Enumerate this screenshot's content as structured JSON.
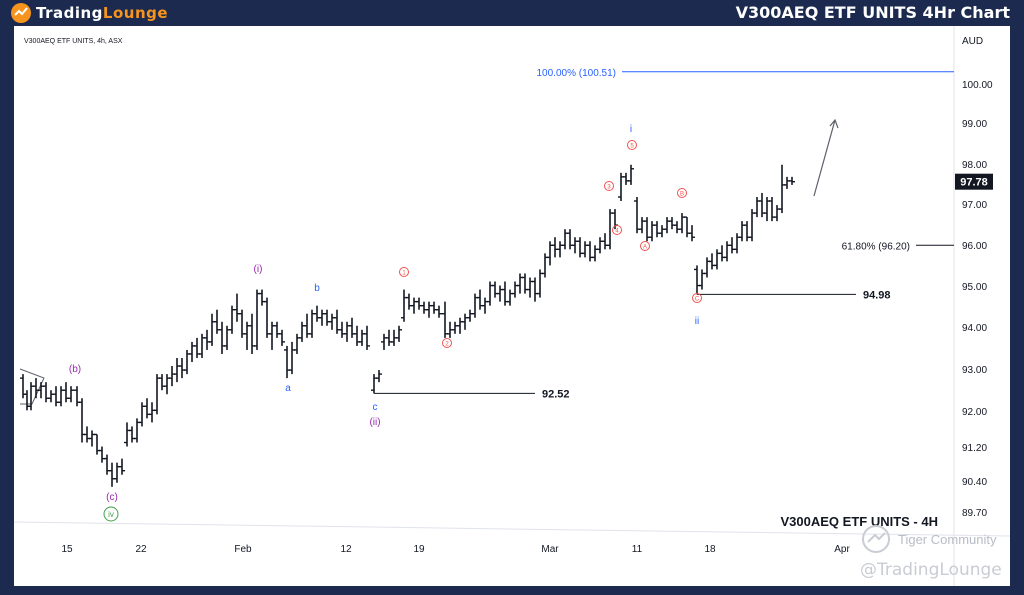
{
  "header": {
    "brand_part1": "Trading",
    "brand_part2": "Lounge",
    "title": "V300AEQ ETF UNITS 4Hr Chart"
  },
  "watermarks": {
    "community": "Tiger Community",
    "handle": "@TradingLounge"
  },
  "chart_data": {
    "type": "ohlc",
    "symbol_info": "V300AEQ ETF UNITS, 4h, ASX",
    "bottom_title": "V300AEQ ETF UNITS - 4H",
    "currency": "AUD",
    "last_price": "97.78",
    "y_ticks": [
      "100.00",
      "99.00",
      "98.00",
      "97.00",
      "96.00",
      "95.00",
      "94.00",
      "93.00",
      "92.00",
      "91.20",
      "90.40",
      "89.70"
    ],
    "x_ticks": [
      "15",
      "22",
      "Feb",
      "12",
      "19",
      "Mar",
      "11",
      "18",
      "Apr"
    ],
    "ylim": [
      89.4,
      101.3
    ],
    "bars": [
      {
        "x": 23,
        "o": 92.9,
        "h": 93.0,
        "l": 92.4,
        "c": 92.5
      },
      {
        "x": 27,
        "o": 92.5,
        "h": 92.6,
        "l": 92.1,
        "c": 92.2
      },
      {
        "x": 31,
        "o": 92.2,
        "h": 92.8,
        "l": 92.1,
        "c": 92.7
      },
      {
        "x": 36,
        "o": 92.7,
        "h": 92.9,
        "l": 92.4,
        "c": 92.6
      },
      {
        "x": 41,
        "o": 92.6,
        "h": 92.8,
        "l": 92.4,
        "c": 92.7
      },
      {
        "x": 46,
        "o": 92.7,
        "h": 92.8,
        "l": 92.3,
        "c": 92.4
      },
      {
        "x": 51,
        "o": 92.4,
        "h": 92.6,
        "l": 92.3,
        "c": 92.5
      },
      {
        "x": 56,
        "o": 92.5,
        "h": 92.7,
        "l": 92.2,
        "c": 92.3
      },
      {
        "x": 61,
        "o": 92.3,
        "h": 92.7,
        "l": 92.2,
        "c": 92.6
      },
      {
        "x": 66,
        "o": 92.6,
        "h": 92.8,
        "l": 92.3,
        "c": 92.4
      },
      {
        "x": 71,
        "o": 92.4,
        "h": 92.7,
        "l": 92.3,
        "c": 92.6
      },
      {
        "x": 77,
        "o": 92.6,
        "h": 92.7,
        "l": 92.2,
        "c": 92.3
      },
      {
        "x": 82,
        "o": 92.3,
        "h": 92.4,
        "l": 91.3,
        "c": 91.5
      },
      {
        "x": 87,
        "o": 91.5,
        "h": 91.7,
        "l": 91.3,
        "c": 91.4
      },
      {
        "x": 92,
        "o": 91.4,
        "h": 91.6,
        "l": 91.2,
        "c": 91.5
      },
      {
        "x": 97,
        "o": 91.5,
        "h": 91.5,
        "l": 91.0,
        "c": 91.1
      },
      {
        "x": 102,
        "o": 91.1,
        "h": 91.2,
        "l": 90.8,
        "c": 90.9
      },
      {
        "x": 107,
        "o": 90.9,
        "h": 91.0,
        "l": 90.5,
        "c": 90.6
      },
      {
        "x": 112,
        "o": 90.6,
        "h": 90.8,
        "l": 90.2,
        "c": 90.4
      },
      {
        "x": 117,
        "o": 90.4,
        "h": 90.8,
        "l": 90.3,
        "c": 90.7
      },
      {
        "x": 122,
        "o": 90.7,
        "h": 90.9,
        "l": 90.5,
        "c": 90.6
      },
      {
        "x": 127,
        "o": 91.3,
        "h": 91.8,
        "l": 91.2,
        "c": 91.6
      },
      {
        "x": 132,
        "o": 91.6,
        "h": 91.7,
        "l": 91.3,
        "c": 91.4
      },
      {
        "x": 137,
        "o": 91.4,
        "h": 91.9,
        "l": 91.3,
        "c": 91.8
      },
      {
        "x": 142,
        "o": 91.8,
        "h": 92.3,
        "l": 91.7,
        "c": 92.2
      },
      {
        "x": 147,
        "o": 92.2,
        "h": 92.4,
        "l": 91.9,
        "c": 92.0
      },
      {
        "x": 152,
        "o": 92.0,
        "h": 92.3,
        "l": 91.8,
        "c": 92.1
      },
      {
        "x": 157,
        "o": 92.1,
        "h": 93.0,
        "l": 92.0,
        "c": 92.9
      },
      {
        "x": 162,
        "o": 92.9,
        "h": 93.0,
        "l": 92.6,
        "c": 92.7
      },
      {
        "x": 167,
        "o": 92.7,
        "h": 93.0,
        "l": 92.5,
        "c": 92.9
      },
      {
        "x": 172,
        "o": 92.9,
        "h": 93.2,
        "l": 92.7,
        "c": 93.0
      },
      {
        "x": 177,
        "o": 93.0,
        "h": 93.4,
        "l": 92.8,
        "c": 93.2
      },
      {
        "x": 182,
        "o": 93.2,
        "h": 93.4,
        "l": 92.9,
        "c": 93.1
      },
      {
        "x": 187,
        "o": 93.1,
        "h": 93.6,
        "l": 93.0,
        "c": 93.5
      },
      {
        "x": 192,
        "o": 93.5,
        "h": 93.8,
        "l": 93.3,
        "c": 93.7
      },
      {
        "x": 197,
        "o": 93.7,
        "h": 93.9,
        "l": 93.4,
        "c": 93.5
      },
      {
        "x": 202,
        "o": 93.5,
        "h": 94.0,
        "l": 93.4,
        "c": 93.9
      },
      {
        "x": 207,
        "o": 93.9,
        "h": 94.1,
        "l": 93.6,
        "c": 93.8
      },
      {
        "x": 212,
        "o": 93.8,
        "h": 94.5,
        "l": 93.7,
        "c": 94.3
      },
      {
        "x": 217,
        "o": 94.3,
        "h": 94.6,
        "l": 94.0,
        "c": 94.1
      },
      {
        "x": 222,
        "o": 94.1,
        "h": 94.3,
        "l": 93.5,
        "c": 93.7
      },
      {
        "x": 227,
        "o": 93.7,
        "h": 94.2,
        "l": 93.6,
        "c": 94.1
      },
      {
        "x": 232,
        "o": 94.1,
        "h": 94.7,
        "l": 94.0,
        "c": 94.6
      },
      {
        "x": 237,
        "o": 94.6,
        "h": 95.0,
        "l": 94.3,
        "c": 94.5
      },
      {
        "x": 242,
        "o": 94.5,
        "h": 94.6,
        "l": 93.9,
        "c": 94.0
      },
      {
        "x": 247,
        "o": 94.0,
        "h": 94.3,
        "l": 93.6,
        "c": 94.2
      },
      {
        "x": 252,
        "o": 94.2,
        "h": 94.5,
        "l": 93.5,
        "c": 93.7
      },
      {
        "x": 257,
        "o": 93.7,
        "h": 95.1,
        "l": 93.6,
        "c": 95.0
      },
      {
        "x": 262,
        "o": 95.0,
        "h": 95.1,
        "l": 94.7,
        "c": 94.8
      },
      {
        "x": 267,
        "o": 94.8,
        "h": 94.9,
        "l": 93.9,
        "c": 94.0
      },
      {
        "x": 272,
        "o": 94.0,
        "h": 94.3,
        "l": 93.6,
        "c": 94.2
      },
      {
        "x": 277,
        "o": 94.2,
        "h": 94.3,
        "l": 93.9,
        "c": 94.0
      },
      {
        "x": 282,
        "o": 94.0,
        "h": 94.1,
        "l": 93.7,
        "c": 93.8
      },
      {
        "x": 287,
        "o": 93.6,
        "h": 93.7,
        "l": 92.9,
        "c": 93.1
      },
      {
        "x": 292,
        "o": 93.1,
        "h": 93.8,
        "l": 93.0,
        "c": 93.6
      },
      {
        "x": 297,
        "o": 93.6,
        "h": 94.0,
        "l": 93.5,
        "c": 93.9
      },
      {
        "x": 302,
        "o": 93.9,
        "h": 94.3,
        "l": 93.8,
        "c": 94.2
      },
      {
        "x": 307,
        "o": 94.2,
        "h": 94.5,
        "l": 93.9,
        "c": 94.0
      },
      {
        "x": 312,
        "o": 94.0,
        "h": 94.6,
        "l": 93.9,
        "c": 94.5
      },
      {
        "x": 317,
        "o": 94.5,
        "h": 94.7,
        "l": 94.3,
        "c": 94.4
      },
      {
        "x": 322,
        "o": 94.4,
        "h": 94.6,
        "l": 94.2,
        "c": 94.5
      },
      {
        "x": 327,
        "o": 94.5,
        "h": 94.6,
        "l": 94.2,
        "c": 94.3
      },
      {
        "x": 332,
        "o": 94.3,
        "h": 94.5,
        "l": 94.1,
        "c": 94.4
      },
      {
        "x": 337,
        "o": 94.4,
        "h": 94.6,
        "l": 94.0,
        "c": 94.1
      },
      {
        "x": 342,
        "o": 94.1,
        "h": 94.3,
        "l": 93.9,
        "c": 94.0
      },
      {
        "x": 347,
        "o": 94.0,
        "h": 94.3,
        "l": 93.8,
        "c": 94.2
      },
      {
        "x": 352,
        "o": 94.2,
        "h": 94.4,
        "l": 93.9,
        "c": 94.0
      },
      {
        "x": 357,
        "o": 94.0,
        "h": 94.2,
        "l": 93.7,
        "c": 93.8
      },
      {
        "x": 362,
        "o": 93.8,
        "h": 94.1,
        "l": 93.7,
        "c": 94.0
      },
      {
        "x": 367,
        "o": 94.0,
        "h": 94.2,
        "l": 93.6,
        "c": 93.7
      },
      {
        "x": 374,
        "o": 92.6,
        "h": 93.0,
        "l": 92.52,
        "c": 92.9
      },
      {
        "x": 379,
        "o": 92.9,
        "h": 93.1,
        "l": 92.8,
        "c": 93.0
      },
      {
        "x": 384,
        "o": 93.8,
        "h": 94.0,
        "l": 93.6,
        "c": 93.9
      },
      {
        "x": 389,
        "o": 93.9,
        "h": 94.1,
        "l": 93.7,
        "c": 93.8
      },
      {
        "x": 394,
        "o": 93.8,
        "h": 94.1,
        "l": 93.7,
        "c": 93.9
      },
      {
        "x": 399,
        "o": 93.9,
        "h": 94.2,
        "l": 93.8,
        "c": 94.1
      },
      {
        "x": 404,
        "o": 94.4,
        "h": 95.1,
        "l": 94.3,
        "c": 94.9
      },
      {
        "x": 409,
        "o": 94.9,
        "h": 95.0,
        "l": 94.6,
        "c": 94.7
      },
      {
        "x": 414,
        "o": 94.7,
        "h": 94.9,
        "l": 94.5,
        "c": 94.8
      },
      {
        "x": 419,
        "o": 94.8,
        "h": 94.9,
        "l": 94.6,
        "c": 94.7
      },
      {
        "x": 424,
        "o": 94.7,
        "h": 94.8,
        "l": 94.5,
        "c": 94.6
      },
      {
        "x": 429,
        "o": 94.6,
        "h": 94.8,
        "l": 94.4,
        "c": 94.7
      },
      {
        "x": 434,
        "o": 94.7,
        "h": 94.8,
        "l": 94.5,
        "c": 94.6
      },
      {
        "x": 439,
        "o": 94.6,
        "h": 94.7,
        "l": 94.4,
        "c": 94.5
      },
      {
        "x": 445,
        "o": 94.5,
        "h": 94.8,
        "l": 93.9,
        "c": 94.0
      },
      {
        "x": 450,
        "o": 94.0,
        "h": 94.3,
        "l": 93.9,
        "c": 94.1
      },
      {
        "x": 455,
        "o": 94.1,
        "h": 94.3,
        "l": 94.0,
        "c": 94.2
      },
      {
        "x": 460,
        "o": 94.2,
        "h": 94.4,
        "l": 94.0,
        "c": 94.3
      },
      {
        "x": 465,
        "o": 94.3,
        "h": 94.5,
        "l": 94.1,
        "c": 94.4
      },
      {
        "x": 470,
        "o": 94.4,
        "h": 94.6,
        "l": 94.3,
        "c": 94.5
      },
      {
        "x": 475,
        "o": 94.5,
        "h": 95.0,
        "l": 94.4,
        "c": 94.9
      },
      {
        "x": 480,
        "o": 94.9,
        "h": 95.1,
        "l": 94.6,
        "c": 94.7
      },
      {
        "x": 485,
        "o": 94.7,
        "h": 94.9,
        "l": 94.5,
        "c": 94.8
      },
      {
        "x": 490,
        "o": 94.8,
        "h": 95.3,
        "l": 94.7,
        "c": 95.2
      },
      {
        "x": 495,
        "o": 95.2,
        "h": 95.3,
        "l": 94.9,
        "c": 95.0
      },
      {
        "x": 500,
        "o": 95.0,
        "h": 95.2,
        "l": 94.8,
        "c": 95.1
      },
      {
        "x": 505,
        "o": 95.1,
        "h": 95.3,
        "l": 94.7,
        "c": 94.8
      },
      {
        "x": 510,
        "o": 94.8,
        "h": 95.1,
        "l": 94.7,
        "c": 95.0
      },
      {
        "x": 515,
        "o": 95.0,
        "h": 95.3,
        "l": 94.9,
        "c": 95.2
      },
      {
        "x": 520,
        "o": 95.2,
        "h": 95.5,
        "l": 95.0,
        "c": 95.4
      },
      {
        "x": 525,
        "o": 95.4,
        "h": 95.5,
        "l": 95.0,
        "c": 95.1
      },
      {
        "x": 530,
        "o": 95.1,
        "h": 95.4,
        "l": 94.9,
        "c": 95.3
      },
      {
        "x": 535,
        "o": 95.3,
        "h": 95.4,
        "l": 94.8,
        "c": 95.0
      },
      {
        "x": 540,
        "o": 95.0,
        "h": 95.6,
        "l": 94.9,
        "c": 95.5
      },
      {
        "x": 545,
        "o": 95.5,
        "h": 96.0,
        "l": 95.4,
        "c": 95.9
      },
      {
        "x": 550,
        "o": 95.9,
        "h": 96.3,
        "l": 95.7,
        "c": 96.2
      },
      {
        "x": 555,
        "o": 96.2,
        "h": 96.4,
        "l": 95.9,
        "c": 96.1
      },
      {
        "x": 560,
        "o": 96.1,
        "h": 96.3,
        "l": 95.9,
        "c": 96.2
      },
      {
        "x": 565,
        "o": 96.2,
        "h": 96.6,
        "l": 96.1,
        "c": 96.5
      },
      {
        "x": 570,
        "o": 96.5,
        "h": 96.6,
        "l": 96.1,
        "c": 96.2
      },
      {
        "x": 575,
        "o": 96.2,
        "h": 96.4,
        "l": 96.0,
        "c": 96.3
      },
      {
        "x": 580,
        "o": 96.3,
        "h": 96.4,
        "l": 95.9,
        "c": 96.0
      },
      {
        "x": 585,
        "o": 96.0,
        "h": 96.3,
        "l": 95.9,
        "c": 96.2
      },
      {
        "x": 590,
        "o": 96.2,
        "h": 96.3,
        "l": 95.8,
        "c": 95.9
      },
      {
        "x": 595,
        "o": 95.9,
        "h": 96.2,
        "l": 95.8,
        "c": 96.1
      },
      {
        "x": 600,
        "o": 96.1,
        "h": 96.4,
        "l": 96.0,
        "c": 96.3
      },
      {
        "x": 605,
        "o": 96.3,
        "h": 96.5,
        "l": 96.1,
        "c": 96.2
      },
      {
        "x": 610,
        "o": 96.2,
        "h": 97.1,
        "l": 96.1,
        "c": 97.0
      },
      {
        "x": 615,
        "o": 97.0,
        "h": 97.1,
        "l": 96.6,
        "c": 96.7
      },
      {
        "x": 621,
        "o": 97.4,
        "h": 98.0,
        "l": 97.3,
        "c": 97.9
      },
      {
        "x": 626,
        "o": 97.9,
        "h": 98.0,
        "l": 97.7,
        "c": 97.8
      },
      {
        "x": 631,
        "o": 97.8,
        "h": 98.2,
        "l": 97.7,
        "c": 98.1
      },
      {
        "x": 637,
        "o": 97.3,
        "h": 97.4,
        "l": 96.5,
        "c": 96.6
      },
      {
        "x": 642,
        "o": 96.6,
        "h": 96.9,
        "l": 96.5,
        "c": 96.8
      },
      {
        "x": 647,
        "o": 96.8,
        "h": 96.9,
        "l": 96.3,
        "c": 96.4
      },
      {
        "x": 652,
        "o": 96.4,
        "h": 96.8,
        "l": 96.3,
        "c": 96.7
      },
      {
        "x": 657,
        "o": 96.7,
        "h": 96.8,
        "l": 96.4,
        "c": 96.5
      },
      {
        "x": 662,
        "o": 96.5,
        "h": 96.7,
        "l": 96.4,
        "c": 96.6
      },
      {
        "x": 667,
        "o": 96.6,
        "h": 96.9,
        "l": 96.5,
        "c": 96.8
      },
      {
        "x": 672,
        "o": 96.8,
        "h": 96.9,
        "l": 96.6,
        "c": 96.7
      },
      {
        "x": 677,
        "o": 96.7,
        "h": 96.8,
        "l": 96.5,
        "c": 96.6
      },
      {
        "x": 682,
        "o": 96.6,
        "h": 97.0,
        "l": 96.5,
        "c": 96.9
      },
      {
        "x": 687,
        "o": 96.9,
        "h": 96.9,
        "l": 96.4,
        "c": 96.5
      },
      {
        "x": 692,
        "o": 96.5,
        "h": 96.7,
        "l": 96.3,
        "c": 96.4
      },
      {
        "x": 697,
        "o": 95.6,
        "h": 95.7,
        "l": 94.98,
        "c": 95.2
      },
      {
        "x": 702,
        "o": 95.2,
        "h": 95.6,
        "l": 95.1,
        "c": 95.5
      },
      {
        "x": 707,
        "o": 95.5,
        "h": 95.9,
        "l": 95.4,
        "c": 95.8
      },
      {
        "x": 712,
        "o": 95.8,
        "h": 96.0,
        "l": 95.6,
        "c": 95.7
      },
      {
        "x": 717,
        "o": 95.7,
        "h": 96.1,
        "l": 95.6,
        "c": 96.0
      },
      {
        "x": 722,
        "o": 96.0,
        "h": 96.2,
        "l": 95.8,
        "c": 95.9
      },
      {
        "x": 727,
        "o": 95.9,
        "h": 96.3,
        "l": 95.8,
        "c": 96.2
      },
      {
        "x": 732,
        "o": 96.2,
        "h": 96.4,
        "l": 96.0,
        "c": 96.1
      },
      {
        "x": 737,
        "o": 96.1,
        "h": 96.5,
        "l": 96.0,
        "c": 96.4
      },
      {
        "x": 742,
        "o": 96.4,
        "h": 96.8,
        "l": 96.3,
        "c": 96.7
      },
      {
        "x": 747,
        "o": 96.7,
        "h": 96.8,
        "l": 96.3,
        "c": 96.4
      },
      {
        "x": 752,
        "o": 96.4,
        "h": 97.1,
        "l": 96.3,
        "c": 97.0
      },
      {
        "x": 757,
        "o": 97.0,
        "h": 97.4,
        "l": 96.9,
        "c": 97.3
      },
      {
        "x": 762,
        "o": 97.3,
        "h": 97.5,
        "l": 96.9,
        "c": 97.0
      },
      {
        "x": 767,
        "o": 97.0,
        "h": 97.4,
        "l": 96.8,
        "c": 97.3
      },
      {
        "x": 772,
        "o": 97.3,
        "h": 97.4,
        "l": 96.8,
        "c": 96.9
      },
      {
        "x": 777,
        "o": 96.9,
        "h": 97.2,
        "l": 96.8,
        "c": 97.1
      },
      {
        "x": 782,
        "o": 97.1,
        "h": 98.2,
        "l": 97.0,
        "c": 97.7
      },
      {
        "x": 787,
        "o": 97.7,
        "h": 97.9,
        "l": 97.6,
        "c": 97.8
      },
      {
        "x": 792,
        "o": 97.8,
        "h": 97.9,
        "l": 97.7,
        "c": 97.78
      }
    ],
    "horizontal_levels": [
      {
        "label": "100.00% (100.51)",
        "value": 100.51,
        "color": "#2962ff"
      },
      {
        "label": "61.80% (96.20)",
        "value": 96.2,
        "color": "#131722"
      },
      {
        "label": "94.98",
        "value": 94.98,
        "color": "#131722"
      },
      {
        "label": "92.52",
        "value": 92.52,
        "color": "#131722"
      }
    ],
    "wave_labels": [
      {
        "text": "(b)",
        "color": "#9c27b0"
      },
      {
        "text": "(c)",
        "color": "#9c27b0"
      },
      {
        "text": "iv",
        "color": "#43a047"
      },
      {
        "text": "(i)",
        "color": "#9c27b0"
      },
      {
        "text": "a",
        "color": "#2962ff"
      },
      {
        "text": "b",
        "color": "#2962ff"
      },
      {
        "text": "c",
        "color": "#2962ff"
      },
      {
        "text": "(ii)",
        "color": "#9c27b0"
      },
      {
        "text": "1",
        "color": "#ef5350"
      },
      {
        "text": "2",
        "color": "#ef5350"
      },
      {
        "text": "3",
        "color": "#ef5350"
      },
      {
        "text": "4",
        "color": "#ef5350"
      },
      {
        "text": "5",
        "color": "#ef5350"
      },
      {
        "text": "i",
        "color": "#2962ff"
      },
      {
        "text": "A",
        "color": "#ef5350"
      },
      {
        "text": "B",
        "color": "#ef5350"
      },
      {
        "text": "C",
        "color": "#ef5350"
      },
      {
        "text": "ii",
        "color": "#2962ff"
      }
    ],
    "projection_arrow": "up",
    "grid": false
  }
}
